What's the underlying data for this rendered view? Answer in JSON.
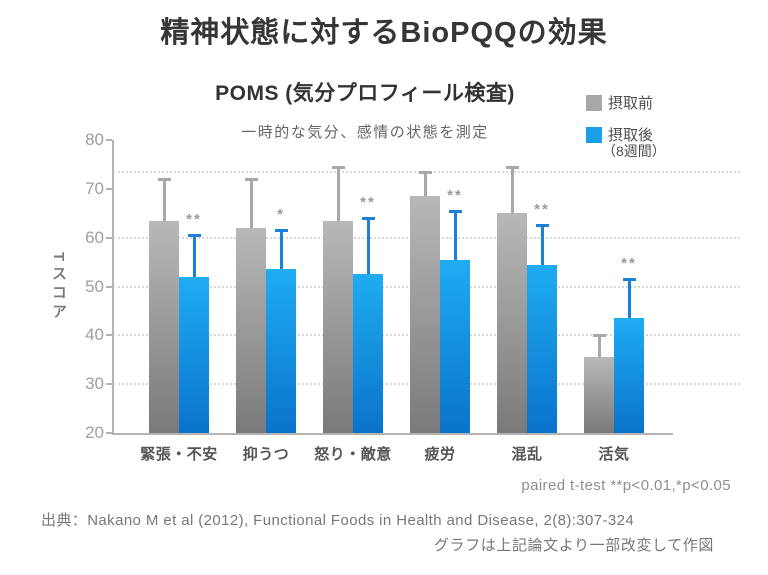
{
  "header": {
    "title": "精神状態に対するBioPQQの効果"
  },
  "chart_header": {
    "title": "POMS (気分プロフィール検査)",
    "subtitle": "一時的な気分、感情の状態を測定"
  },
  "legend": {
    "before_label": "摂取前",
    "after_label": "摂取後",
    "after_sub": "（8週間）"
  },
  "source": {
    "line1": "出典：Nakano M et al (2012), Functional Foods in Health and Disease, 2(8):307-324",
    "line2": "グラフは上記論文より一部改変して作図"
  },
  "colors": {
    "bar_before_top": "#b8b8b8",
    "bar_before_bottom": "#7a7a7a",
    "bar_after_top": "#1facf3",
    "bar_after_bottom": "#0a73cb",
    "error_before": "#a8a8a8",
    "error_after": "#1c80d9",
    "significance": "#9a9a9a",
    "axis": "#b3b3b3",
    "grid": "#cccccc",
    "swatch_before": "#a8a8a8",
    "swatch_after": "#1b9fe8"
  },
  "chart_data": {
    "type": "bar",
    "title": "POMS (気分プロフィール検査)",
    "subtitle": "一時的な気分、感情の状態を測定",
    "xlabel": "",
    "ylabel": "Tスコア",
    "ylim": [
      20,
      80
    ],
    "yticks": [
      20,
      30,
      40,
      50,
      60,
      70,
      80
    ],
    "grid_values": [
      30,
      40,
      50,
      60,
      73.5
    ],
    "grid": "dotted-horizontal",
    "legend_position": "top-right",
    "categories": [
      "緊張・不安",
      "抑うつ",
      "怒り・敵意",
      "疲労",
      "混乱",
      "活気"
    ],
    "series": [
      {
        "name": "摂取前",
        "values": [
          63.5,
          62,
          63.5,
          68.5,
          65,
          35.5
        ],
        "error_upper": [
          8.5,
          10,
          11,
          5,
          9.5,
          4.5
        ]
      },
      {
        "name": "摂取後（8週間）",
        "values": [
          52,
          53.5,
          52.5,
          55.5,
          54.5,
          43.5
        ],
        "error_upper": [
          8.5,
          8,
          11.5,
          10,
          8,
          8
        ]
      }
    ],
    "significance": [
      "**",
      "*",
      "**",
      "**",
      "**",
      "**"
    ],
    "note": "paired t-test **p<0.01,*p<0.05"
  }
}
